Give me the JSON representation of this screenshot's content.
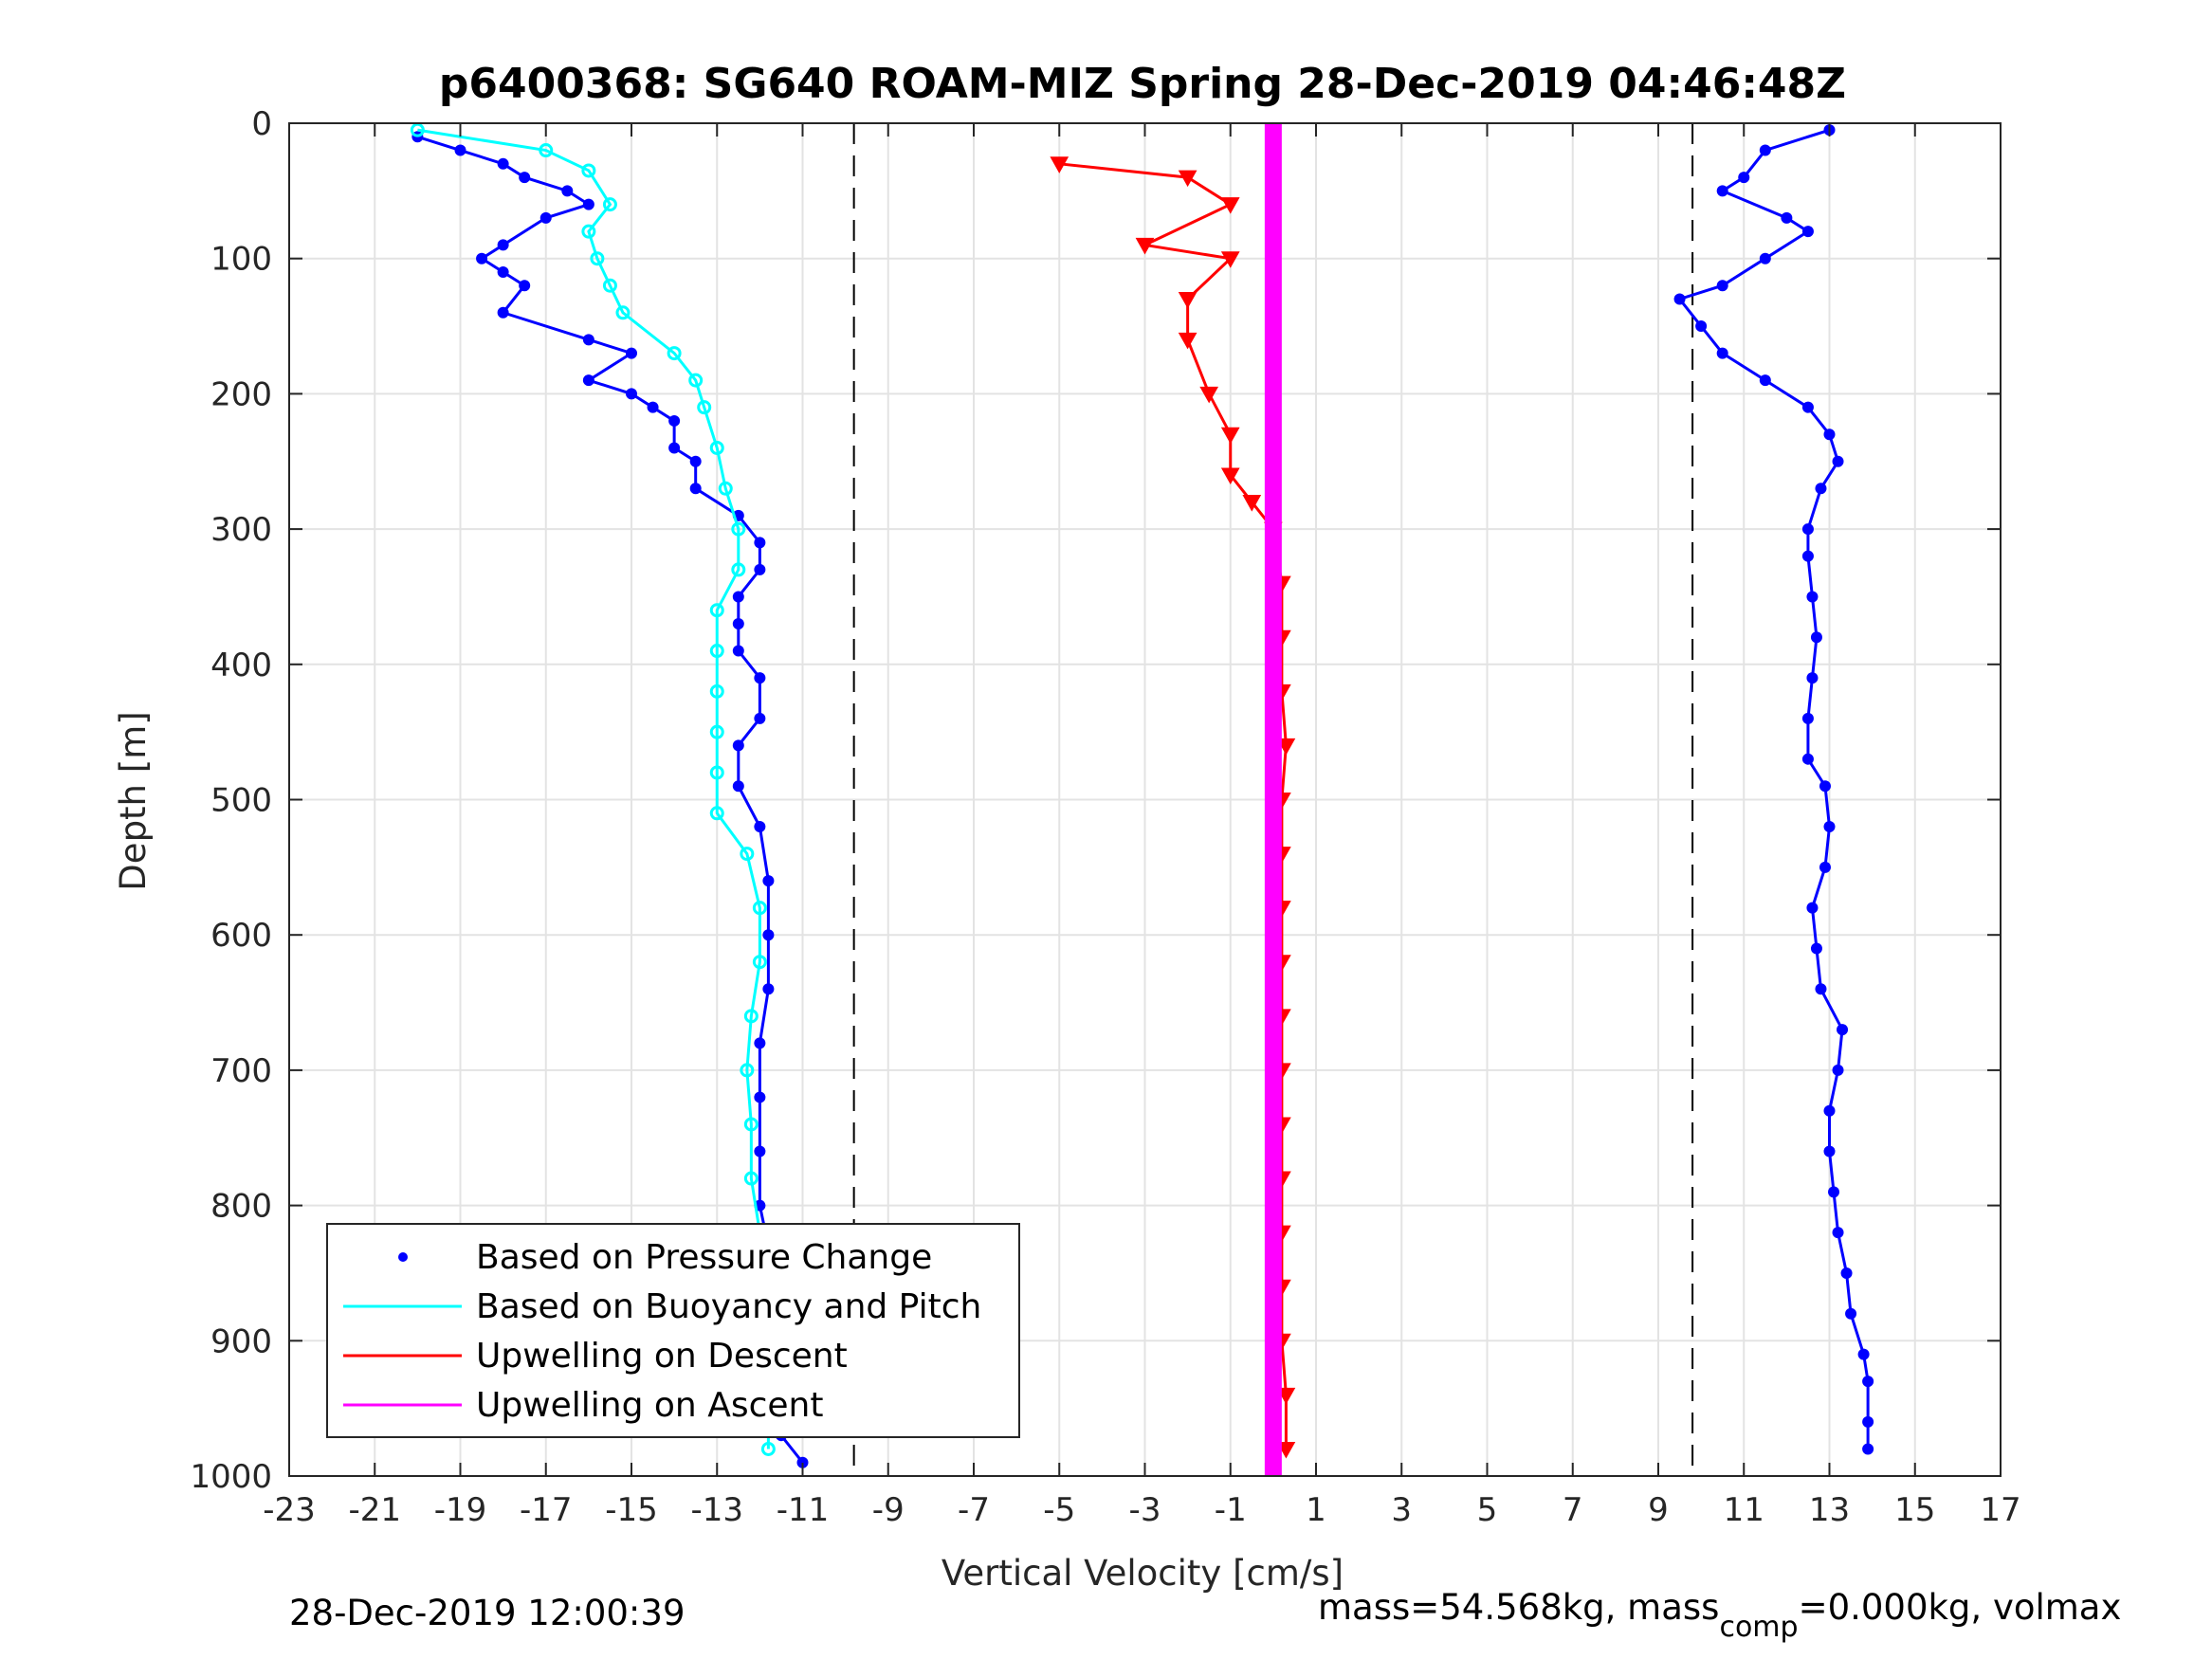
{
  "chart_data": {
    "type": "scatter",
    "title": "p6400368: SG640 ROAM-MIZ Spring 28-Dec-2019 04:46:48Z",
    "xlabel": "Vertical Velocity [cm/s]",
    "ylabel": "Depth [m]",
    "xlim": [
      -23,
      17
    ],
    "ylim": [
      0,
      1000
    ],
    "y_reversed": true,
    "grid": true,
    "x_ticks": [
      "-23",
      "-21",
      "-19",
      "-17",
      "-15",
      "-13",
      "-11",
      "-9",
      "-7",
      "-5",
      "-3",
      "-1",
      "1",
      "3",
      "5",
      "7",
      "9",
      "11",
      "13",
      "15",
      "17"
    ],
    "y_ticks": [
      "0",
      "100",
      "200",
      "300",
      "400",
      "500",
      "600",
      "700",
      "800",
      "900",
      "1000"
    ],
    "reference_lines_x": [
      -9.8,
      9.8
    ],
    "legend_position": "bottom-left",
    "legend": [
      {
        "label": "Based on Pressure Change",
        "color": "#0000ff",
        "style": "dot"
      },
      {
        "label": "Based on Buoyancy and Pitch",
        "color": "#00ffff",
        "style": "line"
      },
      {
        "label": "Upwelling on Descent",
        "color": "#ff0000",
        "style": "line"
      },
      {
        "label": "Upwelling on Ascent",
        "color": "#ff00ff",
        "style": "line"
      }
    ],
    "series": [
      {
        "name": "Based on Pressure Change (descent)",
        "color": "#0000ff",
        "points": [
          [
            -20,
            10
          ],
          [
            -19,
            20
          ],
          [
            -18,
            30
          ],
          [
            -17.5,
            40
          ],
          [
            -16.5,
            50
          ],
          [
            -16,
            60
          ],
          [
            -17,
            70
          ],
          [
            -18,
            90
          ],
          [
            -18.5,
            100
          ],
          [
            -18,
            110
          ],
          [
            -17.5,
            120
          ],
          [
            -18,
            140
          ],
          [
            -16,
            160
          ],
          [
            -15,
            170
          ],
          [
            -16,
            190
          ],
          [
            -15,
            200
          ],
          [
            -14.5,
            210
          ],
          [
            -14,
            220
          ],
          [
            -14,
            240
          ],
          [
            -13.5,
            250
          ],
          [
            -13.5,
            270
          ],
          [
            -12.5,
            290
          ],
          [
            -12,
            310
          ],
          [
            -12,
            330
          ],
          [
            -12.5,
            350
          ],
          [
            -12.5,
            370
          ],
          [
            -12.5,
            390
          ],
          [
            -12,
            410
          ],
          [
            -12,
            440
          ],
          [
            -12.5,
            460
          ],
          [
            -12.5,
            490
          ],
          [
            -12,
            520
          ],
          [
            -11.8,
            560
          ],
          [
            -11.8,
            600
          ],
          [
            -11.8,
            640
          ],
          [
            -12,
            680
          ],
          [
            -12,
            720
          ],
          [
            -12,
            760
          ],
          [
            -12,
            800
          ],
          [
            -11.8,
            830
          ],
          [
            -11.8,
            860
          ],
          [
            -11.5,
            900
          ],
          [
            -11.5,
            940
          ],
          [
            -11.5,
            970
          ],
          [
            -11,
            990
          ]
        ]
      },
      {
        "name": "Based on Pressure Change (ascent)",
        "color": "#0000ff",
        "points": [
          [
            13,
            5
          ],
          [
            11.5,
            20
          ],
          [
            11,
            40
          ],
          [
            10.5,
            50
          ],
          [
            12,
            70
          ],
          [
            12.5,
            80
          ],
          [
            11.5,
            100
          ],
          [
            10.5,
            120
          ],
          [
            9.5,
            130
          ],
          [
            10,
            150
          ],
          [
            10.5,
            170
          ],
          [
            11.5,
            190
          ],
          [
            12.5,
            210
          ],
          [
            13,
            230
          ],
          [
            13.2,
            250
          ],
          [
            12.8,
            270
          ],
          [
            12.5,
            300
          ],
          [
            12.5,
            320
          ],
          [
            12.6,
            350
          ],
          [
            12.7,
            380
          ],
          [
            12.6,
            410
          ],
          [
            12.5,
            440
          ],
          [
            12.5,
            470
          ],
          [
            12.9,
            490
          ],
          [
            13,
            520
          ],
          [
            12.9,
            550
          ],
          [
            12.6,
            580
          ],
          [
            12.7,
            610
          ],
          [
            12.8,
            640
          ],
          [
            13.3,
            670
          ],
          [
            13.2,
            700
          ],
          [
            13,
            730
          ],
          [
            13,
            760
          ],
          [
            13.1,
            790
          ],
          [
            13.2,
            820
          ],
          [
            13.4,
            850
          ],
          [
            13.5,
            880
          ],
          [
            13.8,
            910
          ],
          [
            13.9,
            930
          ],
          [
            13.9,
            960
          ],
          [
            13.9,
            980
          ]
        ]
      },
      {
        "name": "Based on Buoyancy and Pitch",
        "color": "#00ffff",
        "points": [
          [
            -20,
            5
          ],
          [
            -17,
            20
          ],
          [
            -16,
            35
          ],
          [
            -15.5,
            60
          ],
          [
            -16,
            80
          ],
          [
            -15.8,
            100
          ],
          [
            -15.5,
            120
          ],
          [
            -15.2,
            140
          ],
          [
            -14,
            170
          ],
          [
            -13.5,
            190
          ],
          [
            -13.3,
            210
          ],
          [
            -13,
            240
          ],
          [
            -12.8,
            270
          ],
          [
            -12.5,
            300
          ],
          [
            -12.5,
            330
          ],
          [
            -13,
            360
          ],
          [
            -13,
            390
          ],
          [
            -13,
            420
          ],
          [
            -13,
            450
          ],
          [
            -13,
            480
          ],
          [
            -13,
            510
          ],
          [
            -12.3,
            540
          ],
          [
            -12,
            580
          ],
          [
            -12,
            620
          ],
          [
            -12.2,
            660
          ],
          [
            -12.3,
            700
          ],
          [
            -12.2,
            740
          ],
          [
            -12.2,
            780
          ],
          [
            -12,
            820
          ],
          [
            -11.8,
            860
          ],
          [
            -11.8,
            900
          ],
          [
            -11.8,
            940
          ],
          [
            -11.8,
            980
          ]
        ]
      },
      {
        "name": "Upwelling on Descent",
        "color": "#ff0000",
        "points": [
          [
            -5,
            30
          ],
          [
            -2,
            40
          ],
          [
            -1,
            60
          ],
          [
            -3,
            90
          ],
          [
            -1,
            100
          ],
          [
            -2,
            130
          ],
          [
            -2,
            160
          ],
          [
            -1.5,
            200
          ],
          [
            -1,
            230
          ],
          [
            -1,
            260
          ],
          [
            -0.5,
            280
          ],
          [
            0,
            300
          ],
          [
            0.2,
            340
          ],
          [
            0.2,
            380
          ],
          [
            0.2,
            420
          ],
          [
            0.3,
            460
          ],
          [
            0.2,
            500
          ],
          [
            0.2,
            540
          ],
          [
            0.2,
            580
          ],
          [
            0.2,
            620
          ],
          [
            0.2,
            660
          ],
          [
            0.2,
            700
          ],
          [
            0.2,
            740
          ],
          [
            0.2,
            780
          ],
          [
            0.2,
            820
          ],
          [
            0.2,
            860
          ],
          [
            0.2,
            900
          ],
          [
            0.3,
            940
          ],
          [
            0.3,
            980
          ]
        ]
      },
      {
        "name": "Upwelling on Ascent",
        "color": "#ff00ff",
        "points": [
          [
            0,
            0
          ],
          [
            0,
            1000
          ]
        ]
      }
    ]
  },
  "footer": {
    "datetime": "28-Dec-2019 12:00:39",
    "mass_text_1": "mass=54.568kg, mass",
    "mass_sub": "comp",
    "mass_text_2": "=0.000kg, volmax"
  }
}
